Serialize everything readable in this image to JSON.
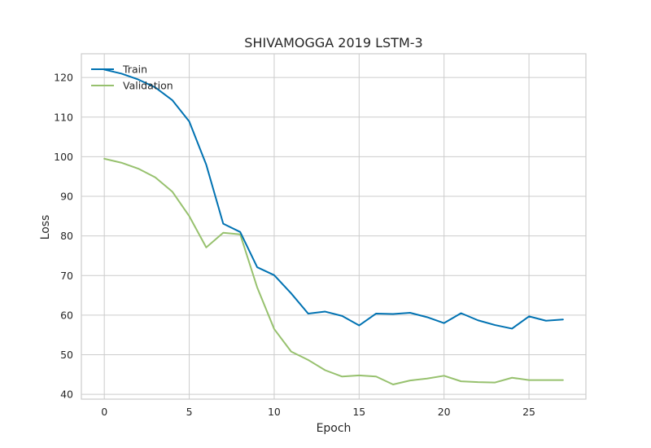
{
  "chart_data": {
    "type": "line",
    "title": "SHIVAMOGGA 2019 LSTM-3",
    "xlabel": "Epoch",
    "ylabel": "Loss",
    "xlim": [
      -1.35,
      28.35
    ],
    "ylim": [
      38.8,
      126.0
    ],
    "xticks": [
      0,
      5,
      10,
      15,
      20,
      25
    ],
    "yticks": [
      40,
      50,
      60,
      70,
      80,
      90,
      100,
      110,
      120
    ],
    "grid": true,
    "legend_position": "top-left",
    "x": [
      0,
      1,
      2,
      3,
      4,
      5,
      6,
      7,
      8,
      9,
      10,
      11,
      12,
      13,
      14,
      15,
      16,
      17,
      18,
      19,
      20,
      21,
      22,
      23,
      24,
      25,
      26,
      27
    ],
    "series": [
      {
        "name": "Train",
        "color": "#0072b2",
        "values": [
          122.0,
          121.0,
          119.5,
          117.5,
          114.3,
          108.9,
          98.0,
          83.1,
          81.0,
          72.1,
          70.1,
          65.5,
          60.4,
          60.9,
          59.8,
          57.4,
          60.4,
          60.3,
          60.6,
          59.5,
          58.0,
          60.5,
          58.7,
          57.5,
          56.6,
          59.7,
          58.6,
          58.9
        ]
      },
      {
        "name": "Validation",
        "color": "#97c16e",
        "values": [
          99.5,
          98.5,
          97.0,
          94.8,
          91.2,
          85.0,
          77.1,
          80.8,
          80.4,
          67.0,
          56.5,
          50.8,
          48.7,
          46.1,
          44.5,
          44.8,
          44.5,
          42.5,
          43.5,
          44.0,
          44.7,
          43.3,
          43.1,
          43.0,
          44.2,
          43.6,
          43.6,
          43.6
        ]
      }
    ]
  }
}
